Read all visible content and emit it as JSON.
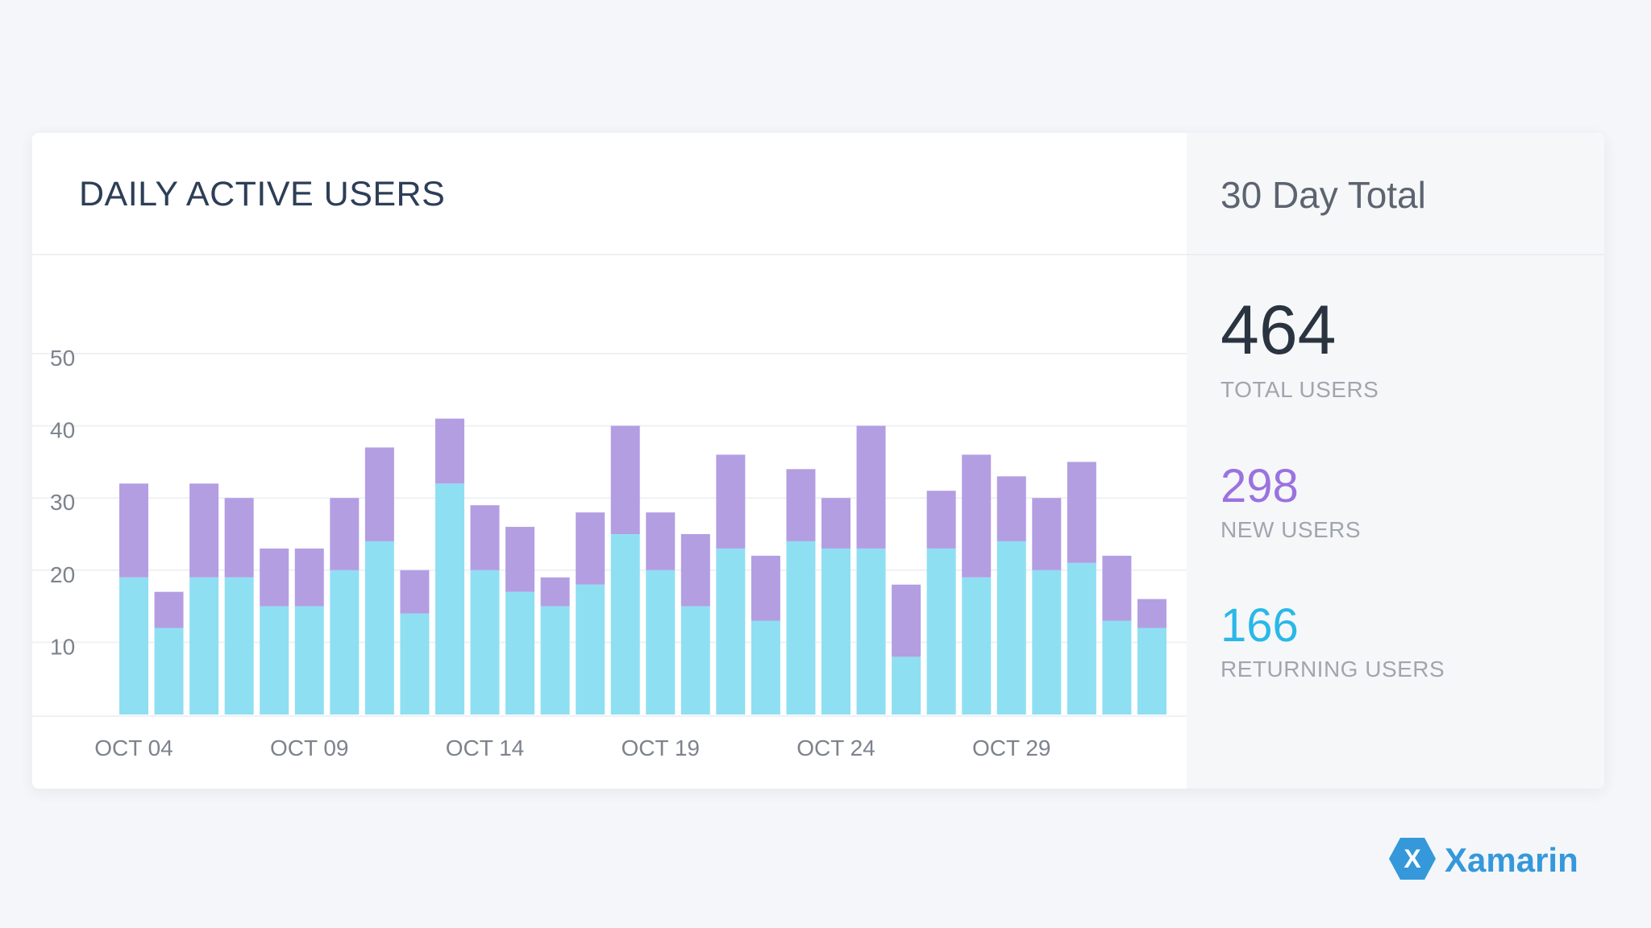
{
  "chart_data": {
    "type": "bar",
    "stacked": true,
    "title": "DAILY ACTIVE USERS",
    "xlabel": "",
    "ylabel": "",
    "ylim": [
      0,
      50
    ],
    "yticks": [
      10,
      20,
      30,
      40,
      50
    ],
    "grid": true,
    "categories": [
      "OCT 04",
      "OCT 05",
      "OCT 06",
      "OCT 07",
      "OCT 08",
      "OCT 09",
      "OCT 10",
      "OCT 11",
      "OCT 12",
      "OCT 13",
      "OCT 14",
      "OCT 15",
      "OCT 16",
      "OCT 17",
      "OCT 18",
      "OCT 19",
      "OCT 20",
      "OCT 21",
      "OCT 22",
      "OCT 23",
      "OCT 24",
      "OCT 25",
      "OCT 26",
      "OCT 27",
      "OCT 28",
      "OCT 29",
      "OCT 30",
      "OCT 31",
      "NOV 01",
      "NOV 02"
    ],
    "xtick_labels": [
      "OCT 04",
      "OCT 09",
      "OCT 14",
      "OCT 19",
      "OCT 24",
      "OCT 29"
    ],
    "xtick_every": 5,
    "series": [
      {
        "name": "Returning Users",
        "color": "#8fdff2",
        "values": [
          19,
          12,
          19,
          19,
          15,
          15,
          20,
          24,
          14,
          32,
          20,
          17,
          15,
          18,
          25,
          20,
          15,
          23,
          13,
          24,
          23,
          23,
          8,
          23,
          19,
          24,
          20,
          21,
          13,
          12
        ]
      },
      {
        "name": "New Users",
        "color": "#b39ee2",
        "values": [
          13,
          5,
          13,
          11,
          8,
          8,
          10,
          13,
          6,
          9,
          9,
          9,
          4,
          10,
          15,
          8,
          10,
          13,
          9,
          10,
          7,
          17,
          10,
          8,
          17,
          9,
          10,
          14,
          9,
          4
        ]
      }
    ]
  },
  "summary": {
    "title": "30 Day Total",
    "total_value": "464",
    "total_label": "TOTAL USERS",
    "new_value": "298",
    "new_label": "NEW USERS",
    "returning_value": "166",
    "returning_label": "RETURNING USERS"
  },
  "brand": {
    "name": "Xamarin",
    "logo_glyph": "X",
    "logo_icon": "xamarin-logo-icon"
  },
  "colors": {
    "returning": "#8fdff2",
    "new": "#b39ee2",
    "grid": "#eef1f5",
    "axis_text": "#7d838c",
    "brand": "#3498db"
  }
}
